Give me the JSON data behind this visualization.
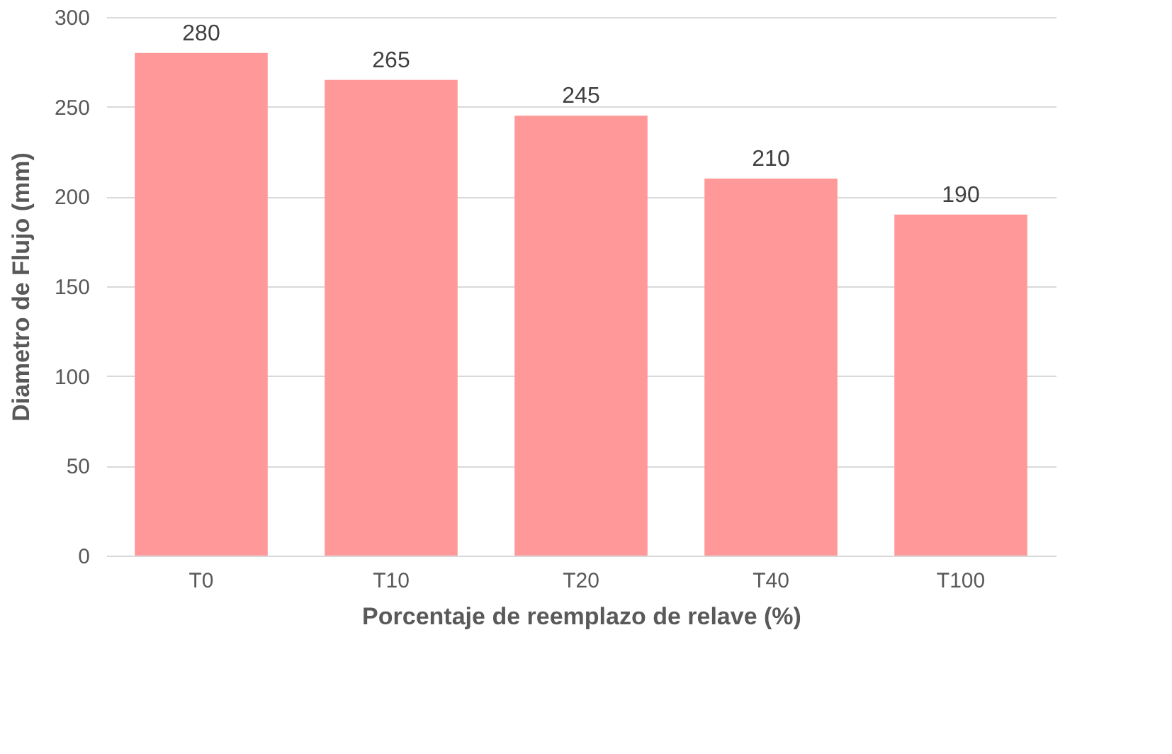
{
  "chart_data": {
    "type": "bar",
    "xlabel": "Porcentaje de reemplazo de relave (%)",
    "ylabel": "Diametro de Flujo (mm)",
    "categories": [
      "T0",
      "T10",
      "T20",
      "T40",
      "T100"
    ],
    "values": [
      280,
      265,
      245,
      210,
      190
    ],
    "color": "#ff9999",
    "ylim": [
      0,
      300
    ],
    "yticks": [
      0,
      50,
      100,
      150,
      200,
      250,
      300
    ],
    "grid": "y",
    "data_labels": true
  }
}
